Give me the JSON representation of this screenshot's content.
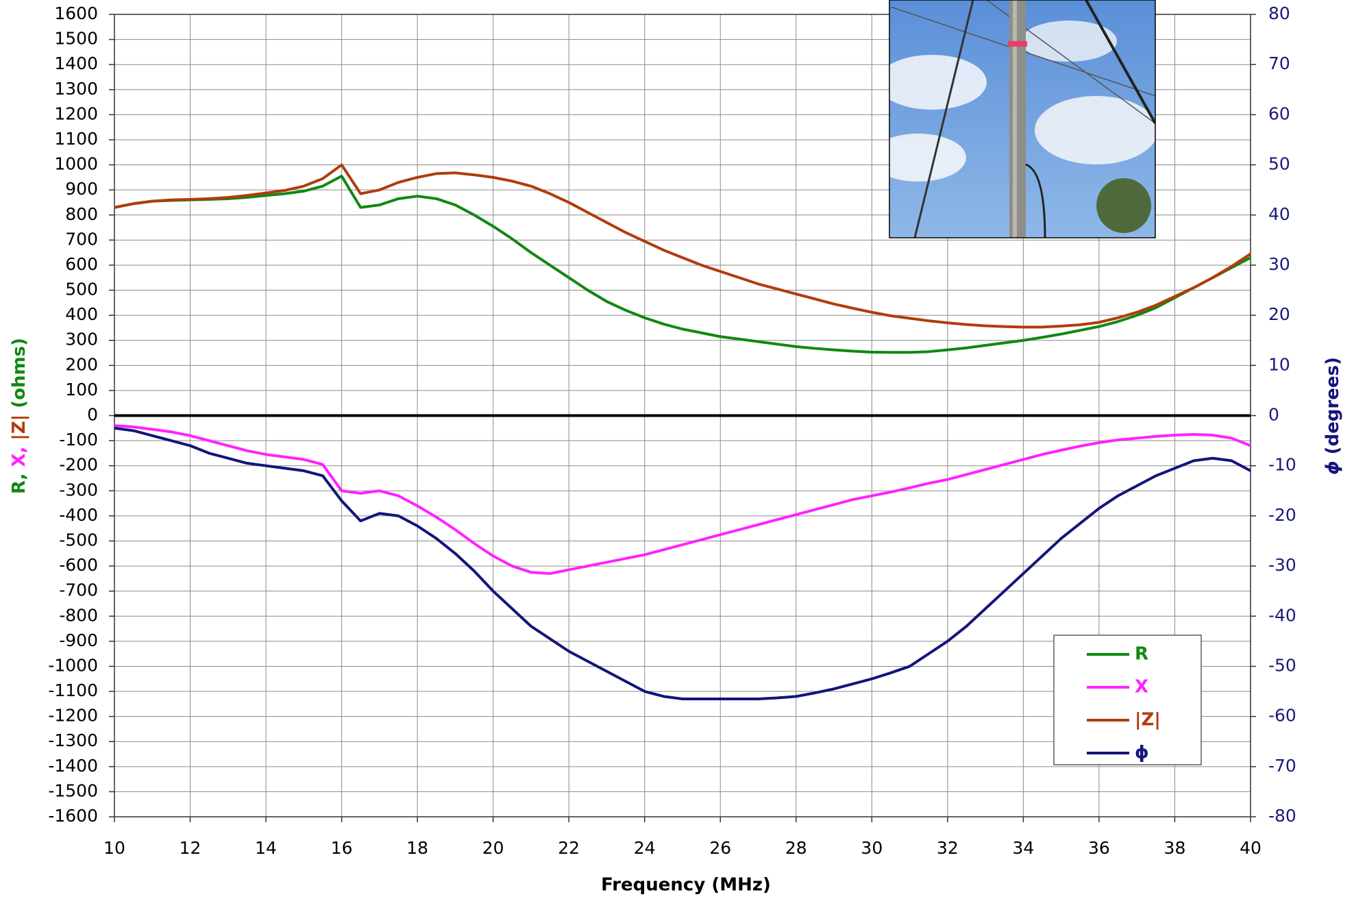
{
  "chart_data": {
    "type": "line",
    "xlabel": "Frequency (MHz)",
    "ylabel": [
      "R",
      ", ",
      "X",
      ", ",
      "|Z|",
      " (ohms)"
    ],
    "y2label": [
      "ϕ",
      " (degrees)"
    ],
    "x": [
      10,
      10.5,
      11,
      11.5,
      12,
      12.5,
      13,
      13.5,
      14,
      14.5,
      15,
      15.5,
      16,
      16.5,
      17,
      17.5,
      18,
      18.5,
      19,
      19.5,
      20,
      20.5,
      21,
      21.5,
      22,
      22.5,
      23,
      23.5,
      24,
      24.5,
      25,
      25.5,
      26,
      26.5,
      27,
      27.5,
      28,
      28.5,
      29,
      29.5,
      30,
      30.5,
      31,
      31.5,
      32,
      32.5,
      33,
      33.5,
      34,
      34.5,
      35,
      35.5,
      36,
      36.5,
      37,
      37.5,
      38,
      38.5,
      39,
      39.5,
      40
    ],
    "series": [
      {
        "name": "R",
        "color": "#118811",
        "values": [
          830,
          845,
          855,
          858,
          860,
          862,
          865,
          870,
          878,
          885,
          895,
          915,
          955,
          830,
          840,
          865,
          875,
          865,
          840,
          800,
          755,
          705,
          650,
          600,
          550,
          500,
          455,
          420,
          390,
          365,
          345,
          330,
          315,
          305,
          295,
          285,
          275,
          268,
          262,
          257,
          253,
          252,
          252,
          255,
          262,
          270,
          280,
          290,
          300,
          312,
          325,
          340,
          355,
          375,
          400,
          430,
          470,
          510,
          550,
          590,
          630
        ]
      },
      {
        "name": "X",
        "color": "#ff22ff",
        "values": [
          -40,
          -45,
          -55,
          -65,
          -80,
          -100,
          -120,
          -140,
          -155,
          -165,
          -175,
          -195,
          -300,
          -310,
          -300,
          -320,
          -360,
          -405,
          -455,
          -510,
          -560,
          -600,
          -625,
          -630,
          -615,
          -600,
          -585,
          -570,
          -555,
          -535,
          -515,
          -495,
          -475,
          -455,
          -435,
          -415,
          -395,
          -375,
          -355,
          -335,
          -320,
          -305,
          -288,
          -270,
          -255,
          -235,
          -215,
          -195,
          -175,
          -155,
          -138,
          -122,
          -108,
          -97,
          -90,
          -83,
          -78,
          -75,
          -78,
          -90,
          -120
        ]
      },
      {
        "name": "|Z|",
        "color": "#b03c0c",
        "values": [
          830,
          845,
          855,
          860,
          862,
          865,
          870,
          878,
          888,
          898,
          915,
          945,
          1000,
          885,
          900,
          930,
          950,
          965,
          968,
          960,
          950,
          935,
          915,
          885,
          850,
          810,
          770,
          730,
          695,
          660,
          630,
          600,
          575,
          550,
          525,
          505,
          485,
          465,
          445,
          428,
          412,
          398,
          388,
          378,
          370,
          363,
          358,
          355,
          353,
          353,
          357,
          362,
          372,
          390,
          412,
          440,
          475,
          510,
          550,
          595,
          645
        ]
      },
      {
        "name": "ϕ",
        "color": "#14147a",
        "axis": "y2",
        "values": [
          -2.5,
          -3,
          -4,
          -5,
          -6,
          -7.5,
          -8.5,
          -9.5,
          -10,
          -10.5,
          -11,
          -12,
          -17,
          -21,
          -19.5,
          -20,
          -22,
          -24.5,
          -27.5,
          -31,
          -35,
          -38.5,
          -42,
          -44.5,
          -47,
          -49,
          -51,
          -53,
          -55,
          -56,
          -56.5,
          -56.5,
          -56.5,
          -56.5,
          -56.5,
          -56.3,
          -56,
          -55.3,
          -54.5,
          -53.5,
          -52.5,
          -51.3,
          -50,
          -47.5,
          -45,
          -42,
          -38.5,
          -35,
          -31.5,
          -28,
          -24.5,
          -21.5,
          -18.5,
          -16,
          -14,
          -12,
          -10.5,
          -9,
          -8.5,
          -9,
          -11
        ]
      }
    ],
    "xlim": [
      10,
      40
    ],
    "xticks": [
      10,
      12,
      14,
      16,
      18,
      20,
      22,
      24,
      26,
      28,
      30,
      32,
      34,
      36,
      38,
      40
    ],
    "ylim": [
      -1600,
      1600
    ],
    "yticks": [
      -1600,
      -1500,
      -1400,
      -1300,
      -1200,
      -1100,
      -1000,
      -900,
      -800,
      -700,
      -600,
      -500,
      -400,
      -300,
      -200,
      -100,
      0,
      100,
      200,
      300,
      400,
      500,
      600,
      700,
      800,
      900,
      1000,
      1100,
      1200,
      1300,
      1400,
      1500,
      1600
    ],
    "y2lim": [
      -80,
      80
    ],
    "y2ticks": [
      -80,
      -70,
      -60,
      -50,
      -40,
      -30,
      -20,
      -10,
      0,
      10,
      20,
      30,
      40,
      50,
      60,
      70,
      80
    ],
    "grid": true,
    "legend": "lower right"
  }
}
